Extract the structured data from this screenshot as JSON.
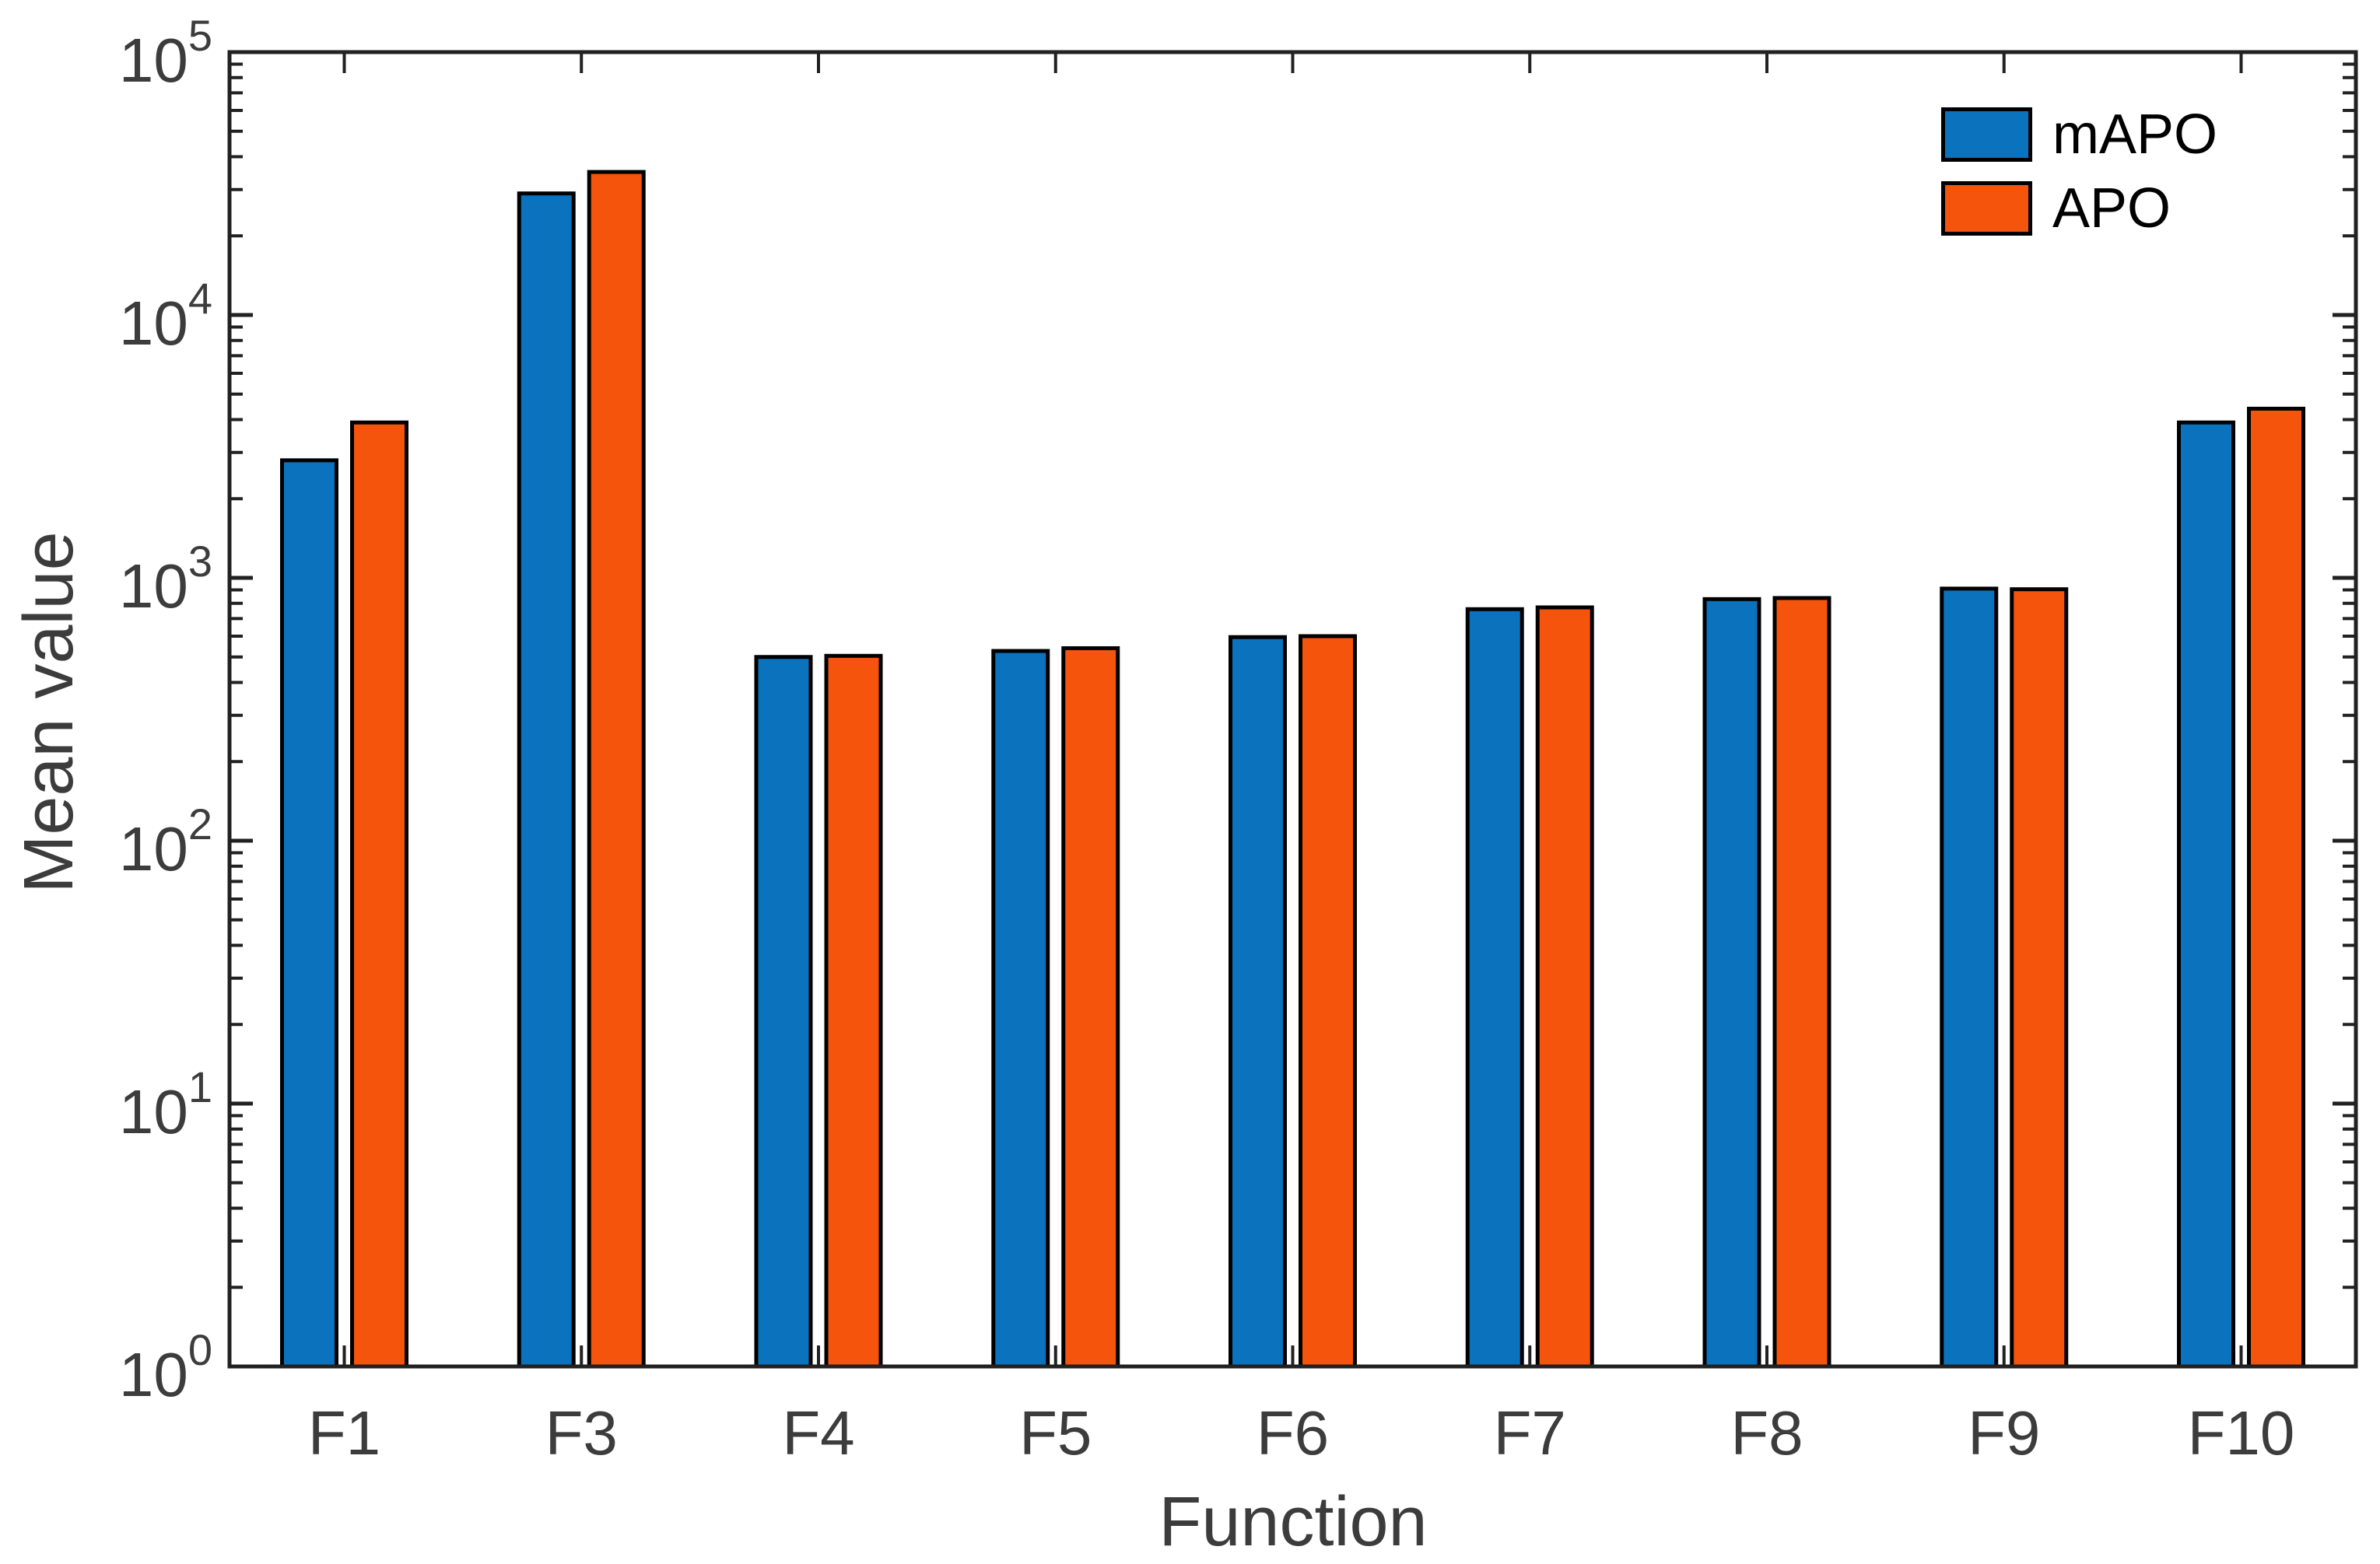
{
  "figure": {
    "background_color": "#ffffff",
    "axis_line_color": "#212121",
    "text_color": "#3c3c3c",
    "bar_edge_color": "#000000"
  },
  "chart_data": {
    "type": "bar",
    "title": "",
    "xlabel": "Function",
    "ylabel": "Mean value",
    "y_scale": "log10",
    "ylim": [
      1,
      100000
    ],
    "y_tick_exponents": [
      0,
      1,
      2,
      3,
      4,
      5
    ],
    "grid": false,
    "legend_position": "top-right-inside",
    "legend_frame": false,
    "categories": [
      "F1",
      "F3",
      "F4",
      "F5",
      "F6",
      "F7",
      "F8",
      "F9",
      "F10"
    ],
    "series": [
      {
        "name": "mAPO",
        "color": "#0b72bd",
        "values": [
          2800,
          29000,
          500,
          527,
          595,
          760,
          830,
          910,
          3900
        ]
      },
      {
        "name": "APO",
        "color": "#f5540d",
        "values": [
          3900,
          35000,
          505,
          540,
          600,
          772,
          838,
          905,
          4400
        ]
      }
    ]
  }
}
